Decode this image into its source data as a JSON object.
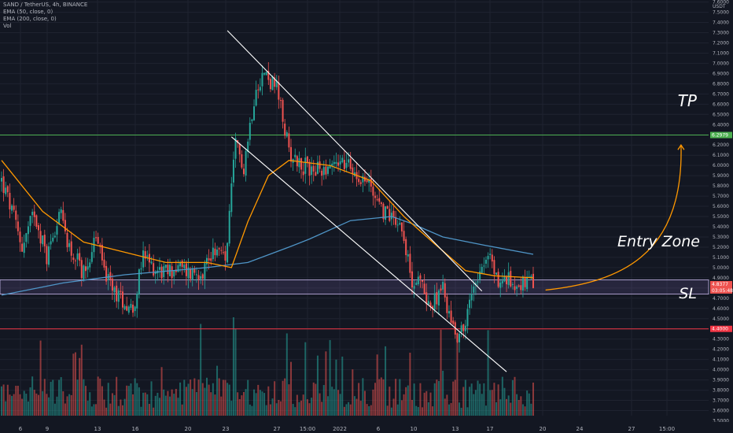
{
  "legend": {
    "symbol_line": "SAND / TetherUS, 4h, BINANCE",
    "ema50_line": "EMA (50, close, 0)",
    "ema200_line": "EMA (200, close, 0)",
    "vol_line": "Vol"
  },
  "price_scale": {
    "currency": "USDT",
    "ticks": [
      "7.6000",
      "7.5000",
      "7.4000",
      "7.3000",
      "7.2000",
      "7.1000",
      "7.0000",
      "6.9000",
      "6.8000",
      "6.7000",
      "6.6000",
      "6.5000",
      "6.4000",
      "6.3000",
      "6.2000",
      "6.1000",
      "6.0000",
      "5.9000",
      "5.8000",
      "5.7000",
      "5.6000",
      "5.5000",
      "5.4000",
      "5.3000",
      "5.2000",
      "5.1000",
      "5.0000",
      "4.9000",
      "4.8000",
      "4.7000",
      "4.6000",
      "4.5000",
      "4.4000",
      "4.3000",
      "4.2000",
      "4.1000",
      "4.0000",
      "3.9000",
      "3.8000",
      "3.7000",
      "3.6000",
      "3.5000"
    ]
  },
  "time_scale": {
    "ticks": [
      "6",
      "9",
      "13",
      "16",
      "20",
      "23",
      "27",
      "15:00",
      "2022",
      "6",
      "10",
      "13",
      "17",
      "20",
      "24",
      "27",
      "15:00"
    ]
  },
  "annotations": {
    "tp": "TP",
    "entry_zone": "Entry Zone",
    "sl": "SL"
  },
  "badges": {
    "tp_price": "6.2979",
    "current_price": "4.8377",
    "countdown": "03:05:48",
    "sl_price": "4.4000"
  },
  "colors": {
    "background": "#131722",
    "up": "#26a69a",
    "down": "#ef5350",
    "ema50": "#ff9800",
    "ema200": "#4f95c7",
    "tp_line": "#4caf50",
    "sl_line": "#f23645",
    "entry_zone": "#9575cd",
    "channel": "#ffffff"
  },
  "chart_data": {
    "type": "candlestick",
    "title": "SAND / TetherUS, 4h, BINANCE",
    "ylabel": "USDT",
    "ylim": [
      3.55,
      7.62
    ],
    "grid": true,
    "x_labels": [
      "6",
      "9",
      "13",
      "16",
      "20",
      "23",
      "27",
      "15:00",
      "2022",
      "6",
      "10",
      "13",
      "17",
      "20",
      "24",
      "27",
      "15:00"
    ],
    "levels": {
      "take_profit": 6.2979,
      "stop_loss": 4.4,
      "entry_zone": [
        4.74,
        4.88
      ],
      "last_price": 4.8377
    },
    "close_anchors": [
      {
        "bar": 0,
        "close": 5.85
      },
      {
        "bar": 5,
        "close": 5.55
      },
      {
        "bar": 10,
        "close": 5.2
      },
      {
        "bar": 16,
        "close": 5.55
      },
      {
        "bar": 22,
        "close": 5.1
      },
      {
        "bar": 28,
        "close": 5.55
      },
      {
        "bar": 34,
        "close": 5.15
      },
      {
        "bar": 40,
        "close": 4.95
      },
      {
        "bar": 46,
        "close": 5.3
      },
      {
        "bar": 52,
        "close": 4.85
      },
      {
        "bar": 58,
        "close": 4.7
      },
      {
        "bar": 64,
        "close": 4.6
      },
      {
        "bar": 69,
        "close": 5.1
      },
      {
        "bar": 74,
        "close": 5.0
      },
      {
        "bar": 80,
        "close": 4.95
      },
      {
        "bar": 86,
        "close": 5.0
      },
      {
        "bar": 92,
        "close": 4.95
      },
      {
        "bar": 98,
        "close": 4.98
      },
      {
        "bar": 104,
        "close": 5.2
      },
      {
        "bar": 109,
        "close": 5.06
      },
      {
        "bar": 114,
        "close": 6.2
      },
      {
        "bar": 118,
        "close": 6.0
      },
      {
        "bar": 124,
        "close": 6.8
      },
      {
        "bar": 128,
        "close": 6.9
      },
      {
        "bar": 134,
        "close": 6.75
      },
      {
        "bar": 140,
        "close": 6.15
      },
      {
        "bar": 146,
        "close": 6.0
      },
      {
        "bar": 154,
        "close": 5.95
      },
      {
        "bar": 164,
        "close": 6.05
      },
      {
        "bar": 172,
        "close": 5.95
      },
      {
        "bar": 180,
        "close": 5.8
      },
      {
        "bar": 186,
        "close": 5.55
      },
      {
        "bar": 192,
        "close": 5.5
      },
      {
        "bar": 196,
        "close": 5.35
      },
      {
        "bar": 199,
        "close": 4.9
      },
      {
        "bar": 204,
        "close": 4.85
      },
      {
        "bar": 210,
        "close": 4.6
      },
      {
        "bar": 214,
        "close": 4.85
      },
      {
        "bar": 218,
        "close": 4.55
      },
      {
        "bar": 222,
        "close": 4.35
      },
      {
        "bar": 226,
        "close": 4.45
      },
      {
        "bar": 230,
        "close": 4.85
      },
      {
        "bar": 234,
        "close": 5.05
      },
      {
        "bar": 238,
        "close": 5.1
      },
      {
        "bar": 242,
        "close": 4.85
      },
      {
        "bar": 246,
        "close": 4.88
      },
      {
        "bar": 250,
        "close": 4.85
      },
      {
        "bar": 256,
        "close": 4.84
      },
      {
        "bar": 259,
        "close": 4.84
      }
    ],
    "series": [
      {
        "name": "EMA (50, close, 0)",
        "points": [
          {
            "bar": 0,
            "value": 6.05
          },
          {
            "bar": 20,
            "value": 5.55
          },
          {
            "bar": 40,
            "value": 5.25
          },
          {
            "bar": 60,
            "value": 5.15
          },
          {
            "bar": 80,
            "value": 5.05
          },
          {
            "bar": 100,
            "value": 5.05
          },
          {
            "bar": 112,
            "value": 5.0
          },
          {
            "bar": 120,
            "value": 5.45
          },
          {
            "bar": 130,
            "value": 5.9
          },
          {
            "bar": 140,
            "value": 6.05
          },
          {
            "bar": 160,
            "value": 6.0
          },
          {
            "bar": 180,
            "value": 5.85
          },
          {
            "bar": 196,
            "value": 5.5
          },
          {
            "bar": 210,
            "value": 5.25
          },
          {
            "bar": 226,
            "value": 4.97
          },
          {
            "bar": 240,
            "value": 4.92
          },
          {
            "bar": 259,
            "value": 4.9
          }
        ]
      },
      {
        "name": "EMA (200, close, 0)",
        "points": [
          {
            "bar": 0,
            "value": 4.73
          },
          {
            "bar": 30,
            "value": 4.85
          },
          {
            "bar": 60,
            "value": 4.93
          },
          {
            "bar": 100,
            "value": 5.0
          },
          {
            "bar": 120,
            "value": 5.05
          },
          {
            "bar": 140,
            "value": 5.2
          },
          {
            "bar": 150,
            "value": 5.28
          },
          {
            "bar": 170,
            "value": 5.46
          },
          {
            "bar": 190,
            "value": 5.5
          },
          {
            "bar": 200,
            "value": 5.43
          },
          {
            "bar": 215,
            "value": 5.3
          },
          {
            "bar": 235,
            "value": 5.22
          },
          {
            "bar": 259,
            "value": 5.13
          }
        ]
      }
    ],
    "channel": {
      "upper": [
        {
          "bar": 110,
          "price": 7.32
        },
        {
          "bar": 234,
          "price": 4.77
        }
      ],
      "lower": [
        {
          "bar": 112,
          "price": 6.28
        },
        {
          "bar": 246,
          "price": 3.98
        }
      ]
    }
  }
}
